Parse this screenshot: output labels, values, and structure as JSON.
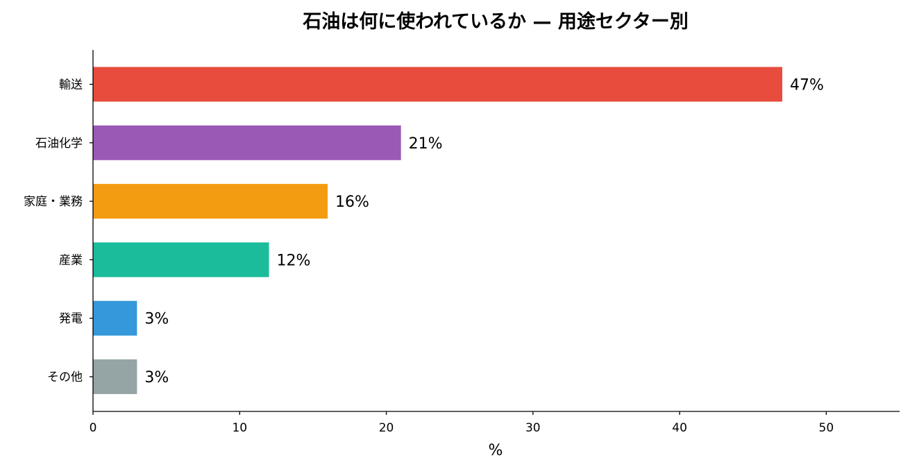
{
  "chart_data": {
    "type": "bar",
    "orientation": "horizontal",
    "title": "石油は何に使われているか — 用途セクター別",
    "xlabel": "%",
    "ylabel": "",
    "xlim": [
      0,
      55
    ],
    "xticks": [
      0,
      10,
      20,
      30,
      40,
      50
    ],
    "grid": false,
    "legend": "none",
    "categories": [
      "輸送",
      "石油化学",
      "家庭・業務",
      "産業",
      "発電",
      "その他"
    ],
    "values": [
      47,
      21,
      16,
      12,
      3,
      3
    ],
    "value_labels": [
      "47%",
      "21%",
      "16%",
      "12%",
      "3%",
      "3%"
    ],
    "colors": [
      "#e74c3c",
      "#9b59b6",
      "#f39c12",
      "#1abc9c",
      "#3498db",
      "#95a5a6"
    ]
  }
}
